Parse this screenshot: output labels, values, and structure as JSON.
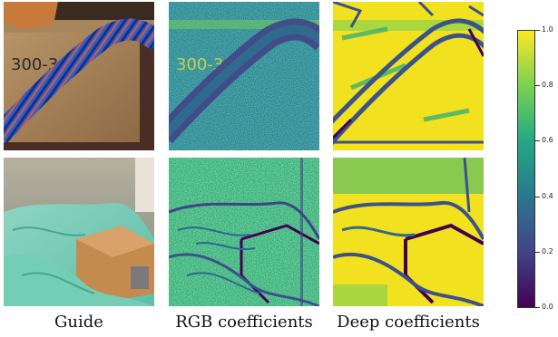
{
  "captions": {
    "guide": "Guide",
    "rgb": "RGB coefficients",
    "deep": "Deep coefficients"
  },
  "guide_top": {
    "box_text": "300-34"
  },
  "rgb_top": {
    "box_text": "300-34"
  },
  "colorbar": {
    "colormap": "viridis",
    "range": [
      0.0,
      1.0
    ],
    "ticks": [
      "0.0",
      "0.2",
      "0.4",
      "0.6",
      "0.8",
      "1.0"
    ],
    "colors": [
      "#440154",
      "#414487",
      "#2a788e",
      "#22a884",
      "#7ad151",
      "#fde725"
    ]
  }
}
